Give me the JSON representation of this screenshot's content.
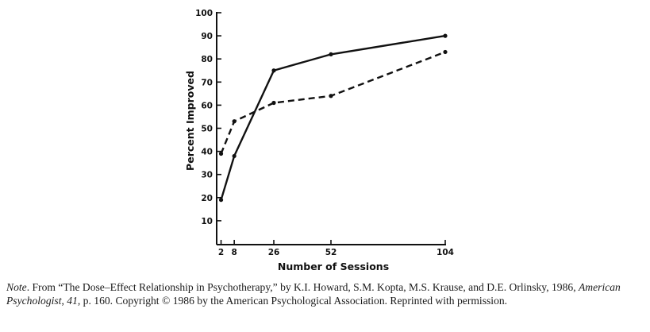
{
  "chart_data": {
    "type": "line",
    "xlabel": "Number of Sessions",
    "ylabel": "Percent Improved",
    "xlim": [
      0,
      104
    ],
    "ylim": [
      0,
      100
    ],
    "x_ticks": [
      2,
      8,
      26,
      52,
      104
    ],
    "y_ticks": [
      10,
      20,
      30,
      40,
      50,
      60,
      70,
      80,
      90,
      100
    ],
    "grid": false,
    "series": [
      {
        "style": "solid",
        "x": [
          2,
          8,
          26,
          52,
          104
        ],
        "y": [
          19,
          38,
          75,
          82,
          90
        ]
      },
      {
        "style": "dashed",
        "x": [
          2,
          8,
          26,
          52,
          104
        ],
        "y": [
          39,
          53,
          61,
          64,
          83
        ]
      }
    ]
  },
  "note": {
    "label": "Note",
    "text_1": ". From “The Dose–Effect Relationship in Psychotherapy,” by K.I. Howard, S.M. Kopta, M.S. Krause, and D.E. Orlinsky, 1986, ",
    "journal": "American Psychologist",
    "text_2": ", ",
    "volume": "41",
    "text_3": ", p. 160. Copyright © 1986 by the American Psychological Association. Reprinted with permission."
  }
}
